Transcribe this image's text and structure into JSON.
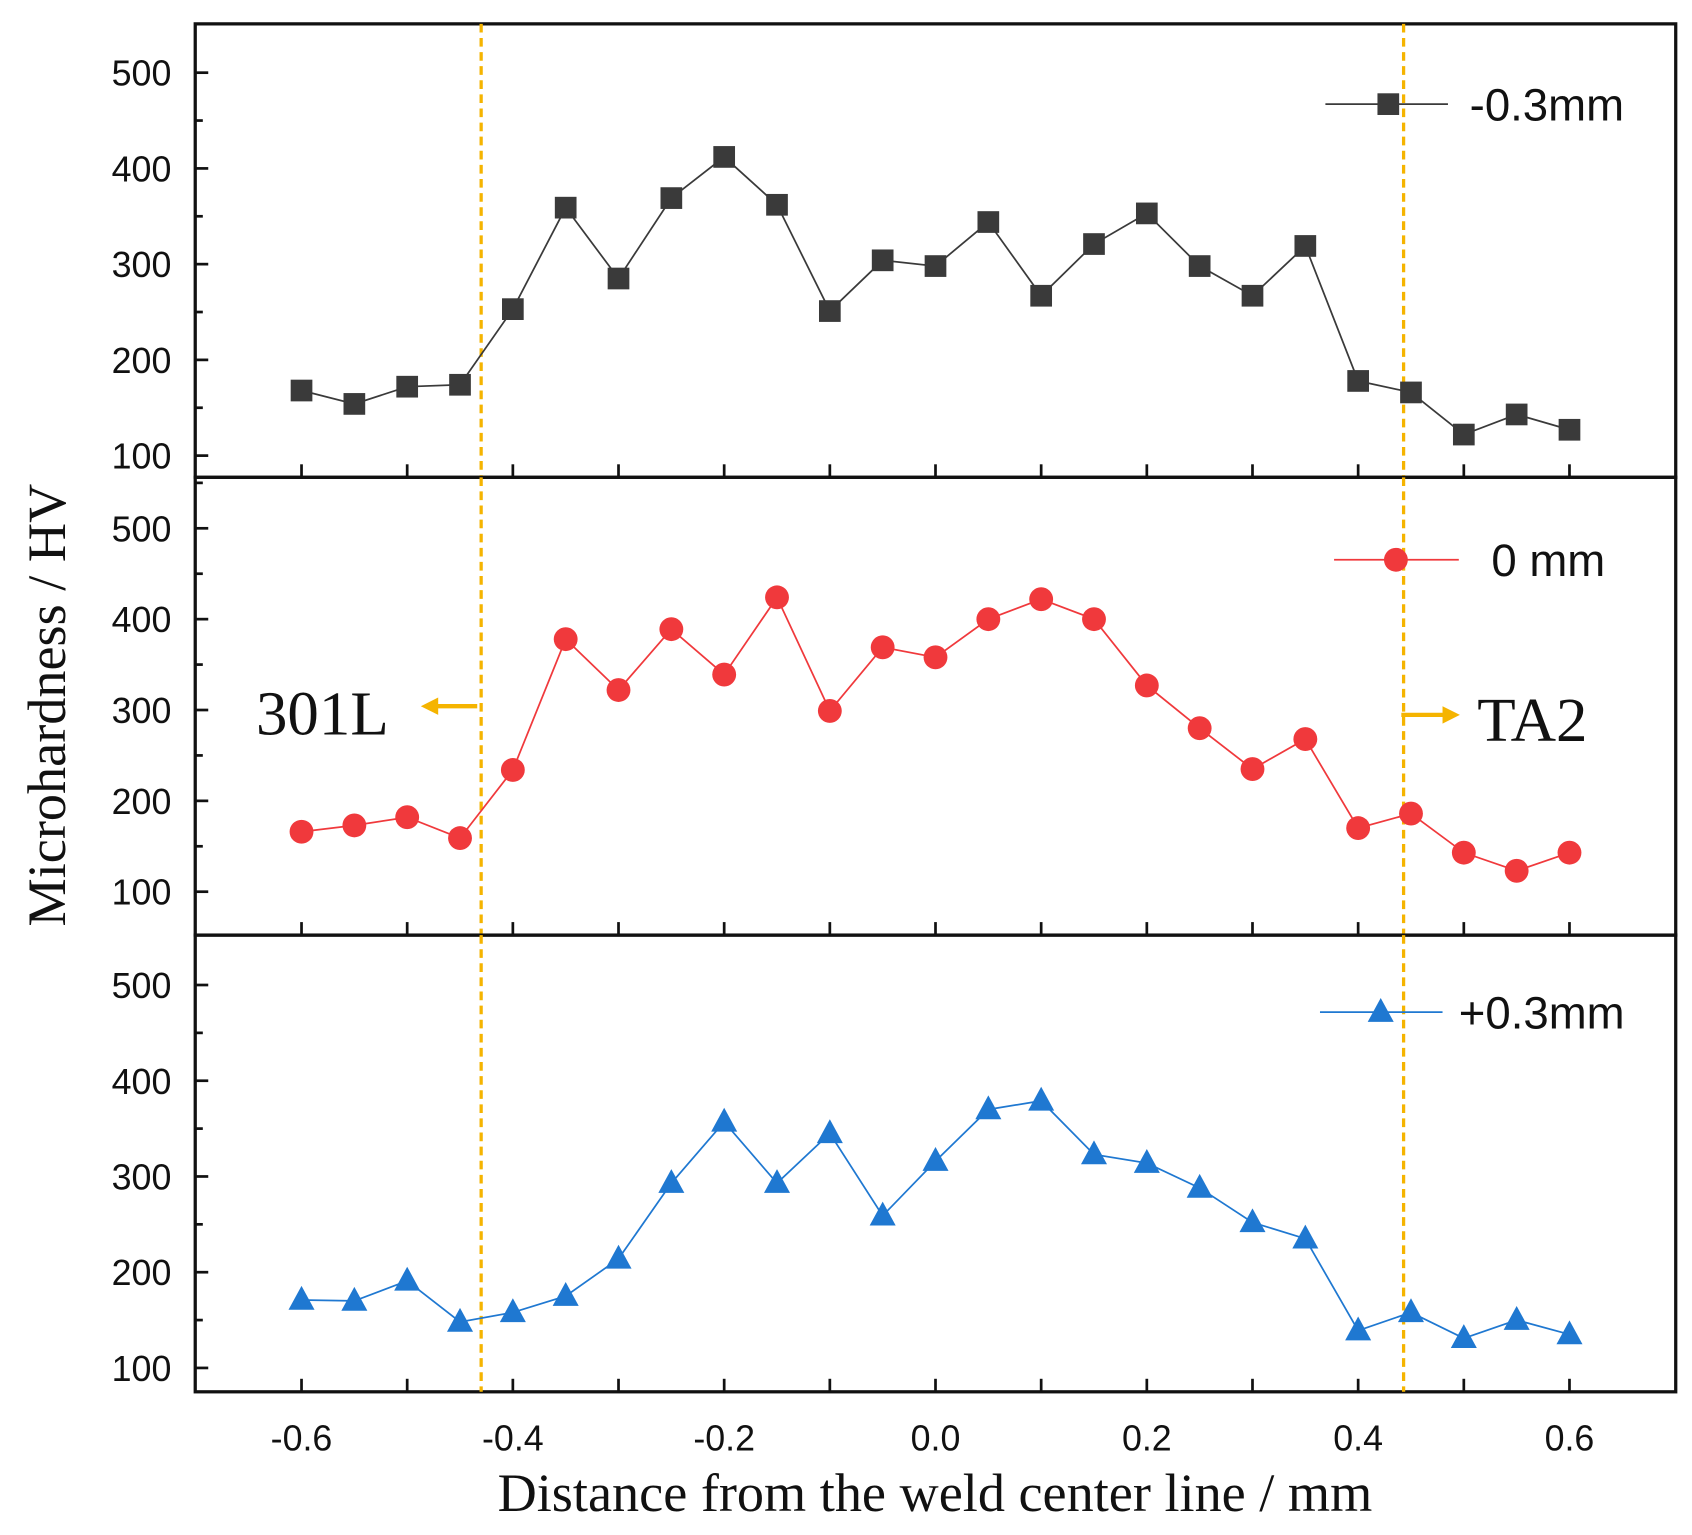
{
  "chart_data": {
    "type": "line",
    "xlabel": "Distance from the weld center line / mm",
    "ylabel": "Microhardness / HV",
    "xlim": [
      -0.7,
      0.7
    ],
    "ylim": [
      80,
      550
    ],
    "x_ticks": [
      "-0.6",
      "-0.4",
      "-0.2",
      "0.0",
      "0.2",
      "0.4",
      "0.6"
    ],
    "y_ticks": [
      "100",
      "200",
      "300",
      "400",
      "500"
    ],
    "x": [
      -0.6,
      -0.55,
      -0.5,
      -0.45,
      -0.4,
      -0.35,
      -0.3,
      -0.25,
      -0.2,
      -0.15,
      -0.1,
      -0.05,
      0,
      0.05,
      0.1,
      0.15,
      0.2,
      0.25,
      0.3,
      0.35,
      0.4,
      0.45,
      0.5,
      0.55,
      0.6
    ],
    "series": [
      {
        "name": "-0.3mm",
        "marker": "square",
        "color": "#3a3a3a",
        "values": [
          168,
          154,
          172,
          174,
          253,
          359,
          285,
          369,
          412,
          362,
          251,
          304,
          298,
          344,
          267,
          321,
          353,
          298,
          267,
          319,
          178,
          166,
          122,
          143,
          127
        ]
      },
      {
        "name": "0 mm",
        "marker": "circle",
        "color": "#f0393c",
        "values": [
          166,
          173,
          182,
          159,
          234,
          378,
          322,
          389,
          339,
          424,
          299,
          369,
          358,
          400,
          422,
          400,
          327,
          280,
          235,
          268,
          170,
          186,
          143,
          123,
          143
        ]
      },
      {
        "name": "+0.3mm",
        "marker": "triangle",
        "color": "#1f78d1",
        "values": [
          171,
          170,
          191,
          148,
          158,
          175,
          214,
          293,
          357,
          293,
          345,
          259,
          316,
          370,
          379,
          323,
          314,
          288,
          252,
          235,
          139,
          158,
          131,
          150,
          135
        ]
      }
    ],
    "reference_lines": [
      -0.43,
      0.443
    ],
    "reference_color": "#f5b400",
    "annotations": [
      {
        "text": "301L",
        "direction": "left"
      },
      {
        "text": "TA2",
        "direction": "right"
      }
    ],
    "legend_placement": "top-right of each panel"
  }
}
